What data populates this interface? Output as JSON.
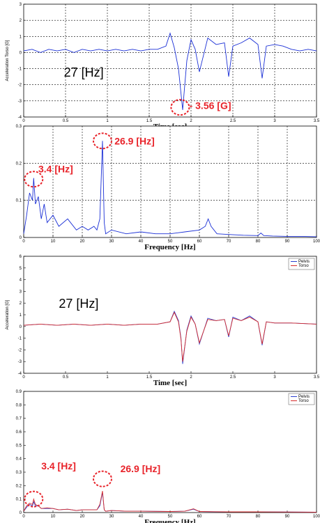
{
  "chart_data": [
    {
      "id": "panel1",
      "type": "line",
      "xlabel": "Time [sec]",
      "ylabel": "Acceleration Torso [G]",
      "xlim": [
        0,
        3.5
      ],
      "ylim": [
        -4,
        3
      ],
      "xticks": [
        "0",
        "0.5",
        "1",
        "1.5",
        "2",
        "2.5",
        "3",
        "3.5"
      ],
      "yticks": [
        "3",
        "2",
        "1",
        "0",
        "-1",
        "-2",
        "-3",
        "-4"
      ],
      "grid": "dashed",
      "series": [
        {
          "color": "#1a2fd6",
          "x": [
            0,
            0.1,
            0.2,
            0.3,
            0.4,
            0.5,
            0.6,
            0.7,
            0.8,
            0.9,
            1.0,
            1.1,
            1.2,
            1.3,
            1.4,
            1.5,
            1.6,
            1.7,
            1.75,
            1.8,
            1.85,
            1.9,
            1.95,
            2.0,
            2.05,
            2.1,
            2.2,
            2.3,
            2.4,
            2.45,
            2.5,
            2.6,
            2.7,
            2.8,
            2.85,
            2.9,
            3.0,
            3.1,
            3.2,
            3.3,
            3.4,
            3.5
          ],
          "y": [
            0.1,
            0.2,
            0.0,
            0.2,
            0.1,
            0.2,
            0.0,
            0.2,
            0.1,
            0.2,
            0.1,
            0.2,
            0.1,
            0.2,
            0.1,
            0.2,
            0.2,
            0.4,
            1.2,
            0.3,
            -1.0,
            -3.56,
            -0.5,
            0.8,
            0.2,
            -1.2,
            0.9,
            0.5,
            0.6,
            -1.5,
            0.4,
            0.6,
            0.9,
            0.5,
            -1.6,
            0.4,
            0.5,
            0.4,
            0.2,
            0.1,
            0.2,
            0.1
          ]
        }
      ],
      "annotations": [
        {
          "text": "27 [Hz]",
          "style": "black",
          "x": 0.48,
          "y": -1.5
        },
        {
          "text": "- 3.56 [G]",
          "style": "red",
          "x": 1.98,
          "y": -3.5,
          "circle_x": 1.87,
          "circle_y": -3.4
        }
      ]
    },
    {
      "id": "panel2",
      "type": "line",
      "xlabel": "Frequency [Hz]",
      "ylabel": "",
      "xlim": [
        0,
        100
      ],
      "ylim": [
        0,
        0.3
      ],
      "xticks": [
        "0",
        "10",
        "20",
        "30",
        "40",
        "50",
        "60",
        "70",
        "80",
        "90",
        "100"
      ],
      "yticks": [
        "0.3",
        "0.2",
        "0.1",
        "0"
      ],
      "grid": "dashed",
      "series": [
        {
          "color": "#1a2fd6",
          "x": [
            0,
            1,
            2,
            3,
            3.4,
            4,
            5,
            6,
            7,
            8,
            10,
            12,
            15,
            18,
            20,
            22,
            24,
            25,
            26,
            26.9,
            27.5,
            28,
            30,
            35,
            40,
            45,
            50,
            55,
            60,
            62,
            63,
            64,
            66,
            70,
            75,
            80,
            81,
            82,
            85,
            90,
            95,
            100
          ],
          "y": [
            0.01,
            0.06,
            0.12,
            0.1,
            0.16,
            0.09,
            0.11,
            0.05,
            0.09,
            0.04,
            0.06,
            0.03,
            0.05,
            0.02,
            0.03,
            0.02,
            0.03,
            0.02,
            0.05,
            0.26,
            0.04,
            0.01,
            0.02,
            0.01,
            0.015,
            0.01,
            0.01,
            0.015,
            0.02,
            0.03,
            0.05,
            0.03,
            0.01,
            0.008,
            0.006,
            0.005,
            0.012,
            0.005,
            0.004,
            0.003,
            0.003,
            0.002
          ]
        }
      ],
      "annotations": [
        {
          "text": "26.9 [Hz]",
          "style": "red",
          "x": 31,
          "y": 0.25,
          "circle_x": 26.9,
          "circle_y": 0.26
        },
        {
          "text": "3.4 [Hz]",
          "style": "red",
          "x": 5,
          "y": 0.175,
          "circle_x": 3.4,
          "circle_y": 0.157
        }
      ]
    },
    {
      "id": "panel3",
      "type": "line",
      "xlabel": "Time [sec]",
      "ylabel": "Acceleration [G]",
      "xlim": [
        0,
        3.5
      ],
      "ylim": [
        -4,
        6
      ],
      "xticks": [
        "0",
        "0.5",
        "1",
        "1.5",
        "2",
        "2.5",
        "3",
        "3.5"
      ],
      "yticks": [
        "6",
        "5",
        "4",
        "3",
        "2",
        "1",
        "0",
        "-1",
        "-2",
        "-3",
        "-4"
      ],
      "grid": "none",
      "legend": "top-right",
      "series": [
        {
          "name": "Pelvis",
          "color": "#2a3fd0",
          "x": [
            0,
            0.2,
            0.4,
            0.6,
            0.8,
            1.0,
            1.2,
            1.4,
            1.6,
            1.75,
            1.8,
            1.85,
            1.88,
            1.9,
            1.95,
            2.0,
            2.05,
            2.1,
            2.2,
            2.3,
            2.4,
            2.45,
            2.5,
            2.6,
            2.7,
            2.8,
            2.85,
            2.9,
            3.0,
            3.2,
            3.5
          ],
          "y": [
            0.1,
            0.2,
            0.1,
            0.2,
            0.1,
            0.2,
            0.1,
            0.2,
            0.2,
            0.4,
            1.3,
            0.5,
            -1.0,
            -3.2,
            -0.3,
            0.9,
            0.2,
            -1.5,
            0.7,
            0.5,
            0.6,
            -0.9,
            0.8,
            0.5,
            0.9,
            0.4,
            -1.6,
            0.4,
            0.3,
            0.3,
            0.2
          ]
        },
        {
          "name": "Torso",
          "color": "#d62a2a",
          "x": [
            0,
            0.2,
            0.4,
            0.6,
            0.8,
            1.0,
            1.2,
            1.4,
            1.6,
            1.75,
            1.8,
            1.85,
            1.88,
            1.9,
            1.95,
            2.0,
            2.05,
            2.1,
            2.2,
            2.3,
            2.4,
            2.45,
            2.5,
            2.6,
            2.7,
            2.8,
            2.85,
            2.9,
            3.0,
            3.2,
            3.5
          ],
          "y": [
            0.1,
            0.2,
            0.1,
            0.2,
            0.1,
            0.2,
            0.1,
            0.2,
            0.2,
            0.4,
            1.2,
            0.4,
            -1.1,
            -3.0,
            -0.4,
            0.8,
            0.2,
            -1.4,
            0.6,
            0.5,
            0.6,
            -0.8,
            0.7,
            0.5,
            0.8,
            0.4,
            -1.5,
            0.4,
            0.3,
            0.3,
            0.2
          ]
        }
      ],
      "annotations": [
        {
          "text": "27 [Hz]",
          "style": "black",
          "x": 0.42,
          "y": 1.6
        }
      ]
    },
    {
      "id": "panel4",
      "type": "line",
      "xlabel": "Frequency [Hz]",
      "ylabel": "",
      "xlim": [
        0,
        100
      ],
      "ylim": [
        0,
        0.9
      ],
      "xticks": [
        "0",
        "10",
        "20",
        "30",
        "40",
        "50",
        "60",
        "70",
        "80",
        "90",
        "100"
      ],
      "yticks": [
        "0.9",
        "0.8",
        "0.7",
        "0.6",
        "0.5",
        "0.4",
        "0.3",
        "0.2",
        "0.1",
        "0"
      ],
      "grid": "none",
      "legend": "top-right",
      "series": [
        {
          "name": "Pelvis",
          "color": "#2a3fd0",
          "x": [
            0,
            1,
            2,
            3,
            3.4,
            4,
            5,
            6,
            8,
            10,
            12,
            15,
            18,
            20,
            24,
            25,
            26,
            26.9,
            27.5,
            28,
            30,
            35,
            40,
            50,
            55,
            58,
            60,
            65,
            70,
            80,
            90,
            100
          ],
          "y": [
            0.01,
            0.04,
            0.06,
            0.05,
            0.08,
            0.05,
            0.05,
            0.03,
            0.03,
            0.03,
            0.02,
            0.025,
            0.015,
            0.02,
            0.02,
            0.02,
            0.05,
            0.15,
            0.02,
            0.01,
            0.015,
            0.01,
            0.01,
            0.008,
            0.01,
            0.025,
            0.008,
            0.006,
            0.005,
            0.005,
            0.004,
            0.003
          ]
        },
        {
          "name": "Torso",
          "color": "#d62a2a",
          "x": [
            0,
            1,
            2,
            3,
            3.4,
            4,
            5,
            6,
            8,
            10,
            12,
            15,
            18,
            20,
            24,
            25,
            26,
            26.9,
            27.5,
            28,
            30,
            35,
            40,
            50,
            55,
            58,
            60,
            65,
            70,
            80,
            90,
            100
          ],
          "y": [
            0.01,
            0.05,
            0.07,
            0.06,
            0.1,
            0.06,
            0.05,
            0.03,
            0.035,
            0.03,
            0.02,
            0.025,
            0.015,
            0.02,
            0.02,
            0.02,
            0.06,
            0.16,
            0.02,
            0.01,
            0.015,
            0.01,
            0.01,
            0.008,
            0.01,
            0.028,
            0.008,
            0.006,
            0.005,
            0.005,
            0.004,
            0.003
          ]
        }
      ],
      "annotations": [
        {
          "text": "3.4 [Hz]",
          "style": "red",
          "x": 6,
          "y": 0.32,
          "circle_x": 3.4,
          "circle_y": 0.1
        },
        {
          "text": "26.9 [Hz]",
          "style": "red",
          "x": 33,
          "y": 0.3,
          "circle_x": 26.9,
          "circle_y": 0.25
        }
      ]
    }
  ]
}
